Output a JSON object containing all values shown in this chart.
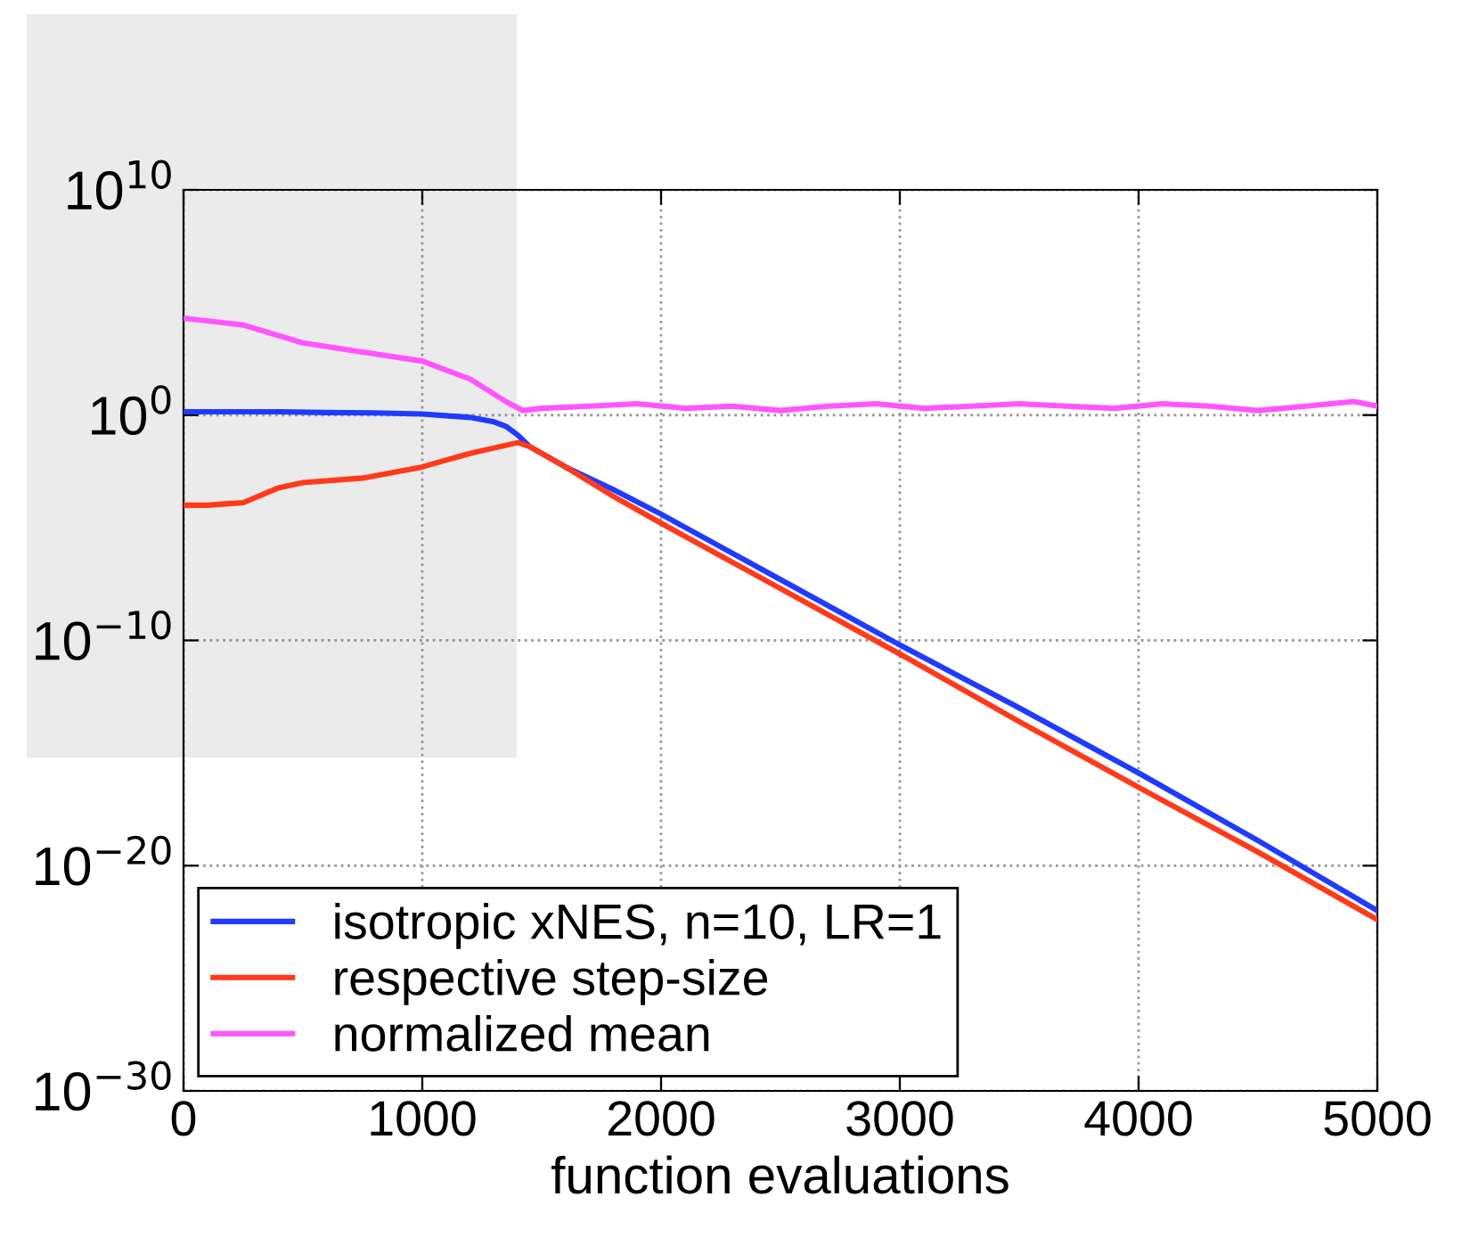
{
  "chart_data": {
    "type": "line",
    "xlabel": "function evaluations",
    "xlim": [
      0,
      5000
    ],
    "xticks": [
      0,
      1000,
      2000,
      3000,
      4000,
      5000
    ],
    "ylim": [
      1e-30,
      10000000000.0
    ],
    "yticks": [
      {
        "value": 1e-30,
        "label": "10$^{−30}$"
      },
      {
        "value": 1e-20,
        "label": "10$^{−20}$"
      },
      {
        "value": 1e-10,
        "label": "10$^{−10}$"
      },
      {
        "value": 1,
        "label": "10$^{0}$"
      },
      {
        "value": 10000000000.0,
        "label": "10$^{10}$"
      }
    ],
    "log": "y",
    "grid": true,
    "legend": "bottom left",
    "line_style": "solid",
    "marker": "none",
    "series": [
      {
        "name": "isotropic xNES, n=10, LR=1",
        "color": "#1f3bff",
        "x": [
          0,
          200,
          400,
          600,
          800,
          1000,
          1200,
          1300,
          1350,
          1400,
          1450,
          1600,
          1800,
          2000,
          2500,
          3000,
          3500,
          4000,
          4500,
          5000
        ],
        "values": [
          1.4,
          1.4,
          1.4,
          1.3,
          1.26,
          1.12,
          0.79,
          0.5,
          0.32,
          0.13,
          0.04,
          0.005,
          0.0005,
          4e-05,
          5e-08,
          6.3e-11,
          1e-13,
          1.3e-16,
          1.3e-19,
          1e-22
        ]
      },
      {
        "name": "respective step-size",
        "color": "#ff3a1a",
        "x": [
          0,
          100,
          250,
          400,
          500,
          750,
          1000,
          1200,
          1400,
          1450,
          1600,
          1800,
          2000,
          2500,
          3000,
          3500,
          4000,
          4500,
          5000
        ],
        "values": [
          0.0001,
          0.0001,
          0.00013,
          0.0006,
          0.001,
          0.0016,
          0.005,
          0.02,
          0.06,
          0.04,
          0.005,
          0.00025,
          1.6e-05,
          2e-08,
          2.5e-11,
          2.5e-14,
          3e-17,
          4e-20,
          4e-23
        ]
      },
      {
        "name": "normalized mean",
        "color": "#ff55ff",
        "x": [
          0,
          250,
          500,
          750,
          1000,
          1200,
          1350,
          1420,
          1500,
          1700,
          1900,
          2100,
          2300,
          2500,
          2700,
          2900,
          3100,
          3300,
          3500,
          3700,
          3900,
          4100,
          4300,
          4500,
          4700,
          4900,
          5000
        ],
        "values": [
          20000.0,
          10000.0,
          1600.0,
          630,
          250,
          40,
          4,
          1.6,
          2,
          2.5,
          3.2,
          2,
          2.5,
          1.6,
          2.5,
          3.2,
          2,
          2.5,
          3.2,
          2.5,
          2,
          3.2,
          2.5,
          1.6,
          2.5,
          4,
          2.5
        ]
      }
    ]
  }
}
